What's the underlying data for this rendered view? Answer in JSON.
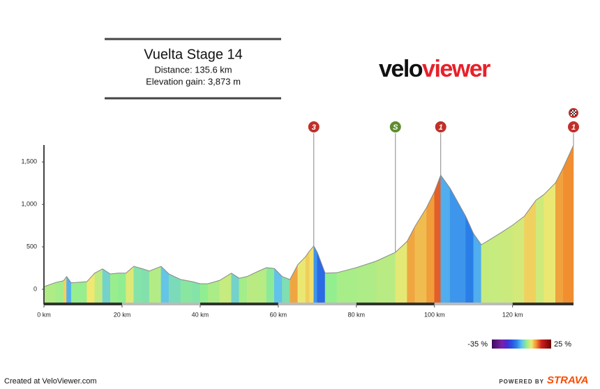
{
  "header": {
    "title": "Vuelta Stage 14",
    "distance": "Distance: 135.6 km",
    "elevation_gain": "Elevation gain: 3,873 m"
  },
  "logo": [
    "velo",
    "viewer"
  ],
  "chart_data": {
    "type": "elevation-profile",
    "x": [
      0,
      3,
      5,
      5.8,
      7,
      11,
      13,
      15,
      17,
      19,
      21,
      23,
      25,
      27,
      30,
      32,
      35,
      38,
      40,
      42,
      45,
      48,
      50,
      52,
      55,
      57,
      59,
      61,
      63,
      65,
      67,
      68,
      69.1,
      70,
      72,
      75,
      80,
      85,
      90,
      93,
      95,
      98,
      100,
      101.6,
      104,
      106,
      108,
      110,
      112,
      114,
      117,
      120,
      123,
      126,
      128,
      131,
      133,
      135.6
    ],
    "series": [
      {
        "values": [
          30,
          80,
          100,
          150,
          75,
          90,
          190,
          240,
          180,
          190,
          190,
          270,
          245,
          215,
          270,
          180,
          115,
          90,
          65,
          65,
          105,
          190,
          130,
          150,
          215,
          255,
          245,
          150,
          115,
          290,
          385,
          450,
          510,
          435,
          190,
          195,
          255,
          330,
          435,
          565,
          740,
          965,
          1150,
          1345,
          1190,
          1025,
          860,
          655,
          525,
          580,
          665,
          755,
          860,
          1050,
          1115,
          1255,
          1435,
          1697
        ]
      }
    ],
    "xlim": [
      0,
      135.6
    ],
    "ylim": [
      -165,
      1700
    ],
    "xticks": [
      {
        "value": 0,
        "label": "0 km"
      },
      {
        "value": 20,
        "label": "20 km"
      },
      {
        "value": 40,
        "label": "40 km"
      },
      {
        "value": 60,
        "label": "60 km"
      },
      {
        "value": 80,
        "label": "80 km"
      },
      {
        "value": 100,
        "label": "100 km"
      },
      {
        "value": 120,
        "label": "120 km"
      }
    ],
    "yticks": [
      0,
      500,
      {
        "value": 1000,
        "label": "1,000"
      },
      {
        "value": 1500,
        "label": "1,500"
      }
    ],
    "markers": [
      {
        "x": 69.1,
        "label": "3",
        "color": "#c0302a"
      },
      {
        "x": 90,
        "label": "S",
        "color": "#5e8c2f"
      },
      {
        "x": 101.6,
        "label": "1",
        "color": "#c0302a"
      },
      {
        "x": 135.6,
        "label": "1",
        "color": "#c0302a"
      }
    ],
    "gradient_scale": {
      "min": {
        "value": -35,
        "label": "-35 %"
      },
      "max": {
        "value": 25,
        "label": "25 %"
      },
      "colors": [
        "#3d0a5c",
        "#5a1580",
        "#7a20a8",
        "#4a2ad0",
        "#2a50e0",
        "#2a80e8",
        "#60c0f0",
        "#90ee90",
        "#f0e870",
        "#f09030",
        "#d02020",
        "#a01010",
        "#700000"
      ]
    }
  },
  "footer": {
    "created": "Created at VeloViewer.com",
    "powered": "POWERED BY",
    "brand": "STRAVA"
  }
}
